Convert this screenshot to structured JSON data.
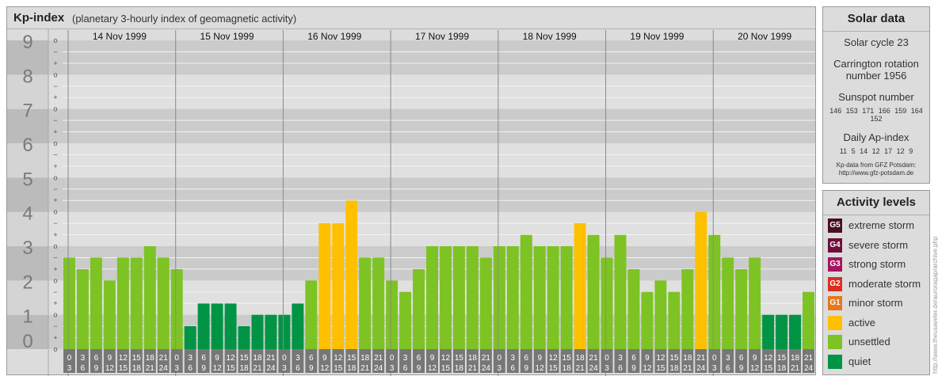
{
  "header": {
    "title": "Kp-index",
    "subtitle": "(planetary 3-hourly index of geomagnetic activity)"
  },
  "chart_data": {
    "type": "bar",
    "ylim": [
      0,
      9
    ],
    "y_tick_labels": [
      "0",
      "1",
      "2",
      "3",
      "4",
      "5",
      "6",
      "7",
      "8",
      "9"
    ],
    "thirds_labels": [
      "−",
      "o",
      "+"
    ],
    "days": [
      "14 Nov 1999",
      "15 Nov 1999",
      "16 Nov 1999",
      "17 Nov 1999",
      "18 Nov 1999",
      "19 Nov 1999",
      "20 Nov 1999"
    ],
    "hour_top": [
      "0",
      "3",
      "6",
      "9",
      "12",
      "15",
      "18",
      "21"
    ],
    "hour_bottom": [
      "3",
      "6",
      "9",
      "12",
      "15",
      "18",
      "21",
      "24"
    ],
    "values": [
      2.67,
      2.33,
      2.67,
      2.0,
      2.67,
      2.67,
      3.0,
      2.67,
      2.33,
      0.67,
      1.33,
      1.33,
      1.33,
      0.67,
      1.0,
      1.0,
      1.0,
      1.33,
      2.0,
      3.67,
      3.67,
      4.33,
      2.67,
      2.67,
      2.0,
      1.67,
      2.33,
      3.0,
      3.0,
      3.0,
      3.0,
      2.67,
      3.0,
      3.0,
      3.33,
      3.0,
      3.0,
      3.0,
      3.67,
      3.33,
      2.67,
      3.33,
      2.33,
      1.67,
      2.0,
      1.67,
      2.33,
      4.0,
      3.33,
      2.67,
      2.33,
      2.67,
      1.0,
      1.0,
      1.0,
      1.67
    ],
    "colors": {
      "quiet": "#009444",
      "unsettled": "#7dc324",
      "active": "#ffc000",
      "band_dark": "#cbcbcb",
      "band_light": "#e0e0e0",
      "label_band_dark": "#bbbbbb",
      "label_band_light": "#d4d4d4",
      "grid_line": "#f4f4f4",
      "day_line": "#8a8a8a",
      "hour_box": "#777777"
    }
  },
  "solar": {
    "title": "Solar data",
    "cycle": "Solar cycle 23",
    "carrington_line1": "Carrington rotation",
    "carrington_line2": "number 1956",
    "sunspot_title": "Sunspot number",
    "sunspot_values": "146 153 171 166 159 164 152",
    "ap_title": "Daily Ap-index",
    "ap_values": "11 5 14 12 17 12 9",
    "source_line1": "Kp-data from GFZ Potsdam:",
    "source_line2": "http://www.gfz-potsdam.de"
  },
  "activity": {
    "title": "Activity levels",
    "items": [
      {
        "code": "G5",
        "label": "extreme storm",
        "color": "#4a0f24"
      },
      {
        "code": "G4",
        "label": "severe storm",
        "color": "#6e0e3c"
      },
      {
        "code": "G3",
        "label": "strong storm",
        "color": "#a3155f"
      },
      {
        "code": "G2",
        "label": "moderate storm",
        "color": "#d9301d"
      },
      {
        "code": "G1",
        "label": "minor storm",
        "color": "#e8761d"
      },
      {
        "code": "",
        "label": "active",
        "color": "#ffc000"
      },
      {
        "code": "",
        "label": "unsettled",
        "color": "#7dc324"
      },
      {
        "code": "",
        "label": "quiet",
        "color": "#009444"
      }
    ]
  },
  "credit": "http://www.theusaveler.de/auroragap/archive.php"
}
